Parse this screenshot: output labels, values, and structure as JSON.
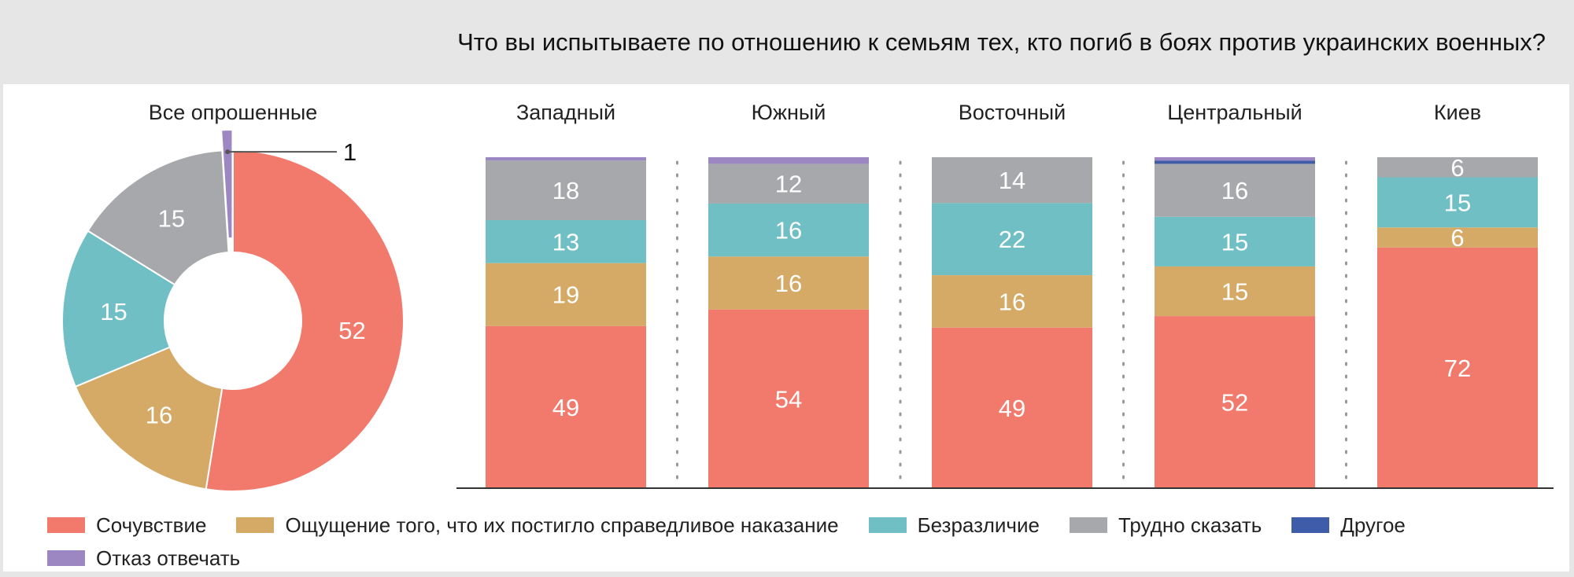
{
  "title": "Что вы испытываете по отношению к семьям тех, кто погиб в боях против украинских военных?",
  "chart_data": [
    {
      "type": "pie",
      "subtype": "donut",
      "title": "Все опрошенные",
      "slices": [
        {
          "category": "Сочувствие",
          "value": 52
        },
        {
          "category": "Ощущение того, что их постигло справедливое наказание",
          "value": 16
        },
        {
          "category": "Безразличие",
          "value": 15
        },
        {
          "category": "Трудно сказать",
          "value": 15
        },
        {
          "category": "Отказ отвечать",
          "value": 1
        }
      ],
      "labels": [
        "52",
        "16",
        "15",
        "15",
        "1"
      ]
    },
    {
      "type": "bar",
      "stacked": true,
      "categories": [
        "Западный",
        "Южный",
        "Восточный",
        "Центральный",
        "Киев"
      ],
      "series": [
        {
          "name": "Сочувствие",
          "values": [
            49,
            54,
            49,
            52,
            72
          ]
        },
        {
          "name": "Ощущение того, что их постигло справедливое наказание",
          "values": [
            19,
            16,
            16,
            15,
            6
          ]
        },
        {
          "name": "Безразличие",
          "values": [
            13,
            16,
            22,
            15,
            15
          ]
        },
        {
          "name": "Трудно сказать",
          "values": [
            18,
            12,
            14,
            16,
            6
          ]
        },
        {
          "name": "Другое",
          "values": [
            0,
            0,
            0,
            1,
            0
          ]
        },
        {
          "name": "Отказ отвечать",
          "values": [
            1,
            2,
            0,
            1,
            0
          ]
        }
      ],
      "labeled_series": [
        "Сочувствие",
        "Ощущение того, что их постигло справедливое наказание",
        "Безразличие",
        "Трудно сказать"
      ],
      "ylim": [
        0,
        100
      ]
    }
  ],
  "legend": [
    {
      "label": "Сочувствие",
      "color": "#f17a6c"
    },
    {
      "label": "Ощущение того, что их постигло справедливое наказание",
      "color": "#d4aa66"
    },
    {
      "label": "Безразличие",
      "color": "#70bfc5"
    },
    {
      "label": "Трудно сказать",
      "color": "#a7a8ab"
    },
    {
      "label": "Другое",
      "color": "#3f5ca8"
    },
    {
      "label": "Отказ отвечать",
      "color": "#9c87c3"
    }
  ]
}
